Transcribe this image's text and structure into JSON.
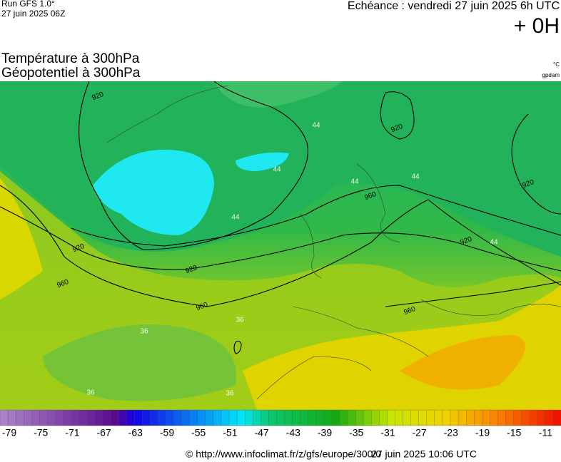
{
  "header": {
    "run": "Run GFS 1.0°",
    "run_date": "27 juin 2025 06Z",
    "echeance": "Echéance : vendredi 27 juin 2025 6h UTC",
    "offset": "+ 0H",
    "title_temp": "Température à 300hPa",
    "title_geo": "Géopotentiel à 300hPa",
    "unit_temp": "°C",
    "unit_geo": "gpdam"
  },
  "map": {
    "contour_labels": [
      "920",
      "920",
      "920",
      "920",
      "920",
      "920",
      "960",
      "960",
      "960",
      "960"
    ],
    "temp_labels": [
      "44",
      "44",
      "44",
      "44",
      "44",
      "44",
      "36",
      "36",
      "36",
      "36"
    ]
  },
  "colorbar": {
    "ticks": [
      -79,
      -75,
      -71,
      -67,
      -63,
      -59,
      -55,
      -51,
      -47,
      -43,
      -39,
      -35,
      -31,
      -27,
      -23,
      -19,
      -15,
      -11
    ]
  },
  "footer": {
    "source": "© http://www.infoclimat.fr/z/gfs/europe/300/0",
    "generated": "27 juin 2025 10:06 UTC"
  }
}
